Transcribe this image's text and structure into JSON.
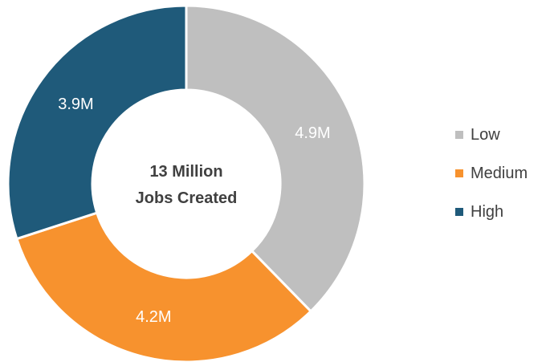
{
  "chart_data": {
    "type": "pie",
    "variant": "donut",
    "center_label": [
      "13 Million",
      "Jobs Created"
    ],
    "slices": [
      {
        "name": "Low",
        "value": 4.9,
        "label": "4.9M",
        "color": "#bfbfbf"
      },
      {
        "name": "Medium",
        "value": 4.2,
        "label": "4.2M",
        "color": "#f7922e"
      },
      {
        "name": "High",
        "value": 3.9,
        "label": "3.9M",
        "color": "#1f5a7a"
      }
    ],
    "legend_position": "right"
  }
}
